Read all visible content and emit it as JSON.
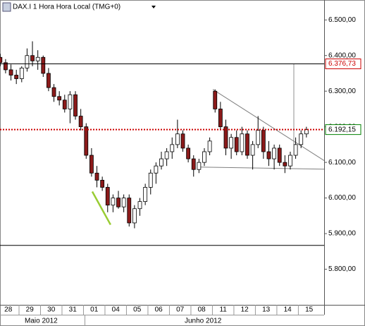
{
  "chart_data": {
    "type": "candlestick",
    "title": "DAX.I 1 Hora Hora Local (TMG+0)",
    "x": [
      0.125,
      0.375,
      0.625,
      0.875,
      1.125,
      1.375,
      1.625,
      1.875,
      2.125,
      2.375,
      2.625,
      2.875,
      3.125,
      3.375,
      3.625,
      3.875,
      4.125,
      4.375,
      4.625,
      4.875,
      5.125,
      5.375,
      5.625,
      5.875,
      6.125,
      6.375,
      6.625,
      6.875,
      7.125,
      7.375,
      7.625,
      7.875,
      8.125,
      8.375,
      8.625,
      8.875,
      9.125,
      9.375,
      9.625,
      9.875,
      10.125,
      10.375,
      10.625,
      10.875,
      11.125,
      11.375,
      11.625,
      11.875,
      12.125,
      12.375,
      12.625,
      12.875,
      13.125,
      13.375,
      13.625,
      13.875,
      14.125,
      14.375
    ],
    "open": [
      6395,
      6380,
      6360,
      6345,
      6335,
      6365,
      6400,
      6385,
      6395,
      6350,
      6310,
      6285,
      6275,
      6250,
      6290,
      6230,
      6200,
      6120,
      6070,
      6050,
      6030,
      5980,
      6000,
      5975,
      6000,
      5930,
      5970,
      5990,
      6030,
      6070,
      6090,
      6110,
      6130,
      6150,
      6180,
      6140,
      6110,
      6080,
      6100,
      6130,
      6300,
      6250,
      6200,
      6140,
      6170,
      6130,
      6180,
      6120,
      6150,
      6190,
      6130,
      6110,
      6140,
      6100,
      6090,
      6120,
      6150,
      6180
    ],
    "high": [
      6405,
      6390,
      6375,
      6360,
      6370,
      6420,
      6440,
      6415,
      6400,
      6365,
      6320,
      6300,
      6290,
      6300,
      6300,
      6250,
      6210,
      6140,
      6090,
      6060,
      6040,
      6010,
      6020,
      6010,
      6010,
      5980,
      6000,
      6040,
      6080,
      6100,
      6130,
      6140,
      6170,
      6220,
      6190,
      6150,
      6120,
      6110,
      6140,
      6170,
      6305,
      6270,
      6220,
      6180,
      6190,
      6200,
      6190,
      6160,
      6230,
      6200,
      6160,
      6150,
      6150,
      6120,
      6130,
      6170,
      6190,
      6200
    ],
    "low": [
      6370,
      6350,
      6330,
      6320,
      6325,
      6355,
      6370,
      6360,
      6340,
      6300,
      6270,
      6260,
      6240,
      6210,
      6220,
      6190,
      6110,
      6060,
      6030,
      6020,
      5960,
      5960,
      5970,
      5960,
      5920,
      5915,
      5950,
      5980,
      6010,
      6040,
      6080,
      6090,
      6110,
      6140,
      6130,
      6100,
      6060,
      6070,
      6090,
      6120,
      6240,
      6190,
      6120,
      6110,
      6120,
      6120,
      6110,
      6080,
      6140,
      6110,
      6090,
      6080,
      6090,
      6070,
      6080,
      6110,
      6140,
      6170
    ],
    "close": [
      6380,
      6360,
      6345,
      6335,
      6365,
      6400,
      6385,
      6395,
      6350,
      6310,
      6285,
      6275,
      6250,
      6290,
      6230,
      6200,
      6120,
      6070,
      6050,
      6030,
      5980,
      6000,
      5975,
      6000,
      5930,
      5970,
      5990,
      6030,
      6070,
      6090,
      6110,
      6130,
      6150,
      6180,
      6140,
      6110,
      6080,
      6100,
      6130,
      6160,
      6250,
      6200,
      6140,
      6170,
      6130,
      6180,
      6120,
      6150,
      6190,
      6130,
      6110,
      6140,
      6100,
      6090,
      6120,
      6150,
      6180,
      6192.15
    ],
    "up_color": "#ffffff",
    "down_color": "#8b1a1a",
    "xlim": [
      0.115,
      15.2
    ],
    "ylim": [
      5700,
      6556
    ],
    "xticks": [
      {
        "value": 0.5,
        "label": "28"
      },
      {
        "value": 1.5,
        "label": "29"
      },
      {
        "value": 2.5,
        "label": "30"
      },
      {
        "value": 3.5,
        "label": "31"
      },
      {
        "value": 4.5,
        "label": "01"
      },
      {
        "value": 5.5,
        "label": "04"
      },
      {
        "value": 6.5,
        "label": "05"
      },
      {
        "value": 7.5,
        "label": "06"
      },
      {
        "value": 8.5,
        "label": "07"
      },
      {
        "value": 9.5,
        "label": "08"
      },
      {
        "value": 10.5,
        "label": "11"
      },
      {
        "value": 11.5,
        "label": "12"
      },
      {
        "value": 12.5,
        "label": "13"
      },
      {
        "value": 13.5,
        "label": "14"
      },
      {
        "value": 14.5,
        "label": "15"
      }
    ],
    "yticks": [
      {
        "value": 5800,
        "label": "5.800,00"
      },
      {
        "value": 5900,
        "label": "5.900,00"
      },
      {
        "value": 6000,
        "label": "6.000,00"
      },
      {
        "value": 6100,
        "label": "6.100,00"
      },
      {
        "value": 6200,
        "label": "6.200,00"
      },
      {
        "value": 6300,
        "label": "6.300,00"
      },
      {
        "value": 6400,
        "label": "6.400,00"
      },
      {
        "value": 6500,
        "label": "6.500,00"
      }
    ],
    "months": [
      "Maio 2012",
      "Junho 2012"
    ],
    "levels": [
      {
        "value": 6376.73,
        "label": "6.376,73",
        "color": "#cc0000",
        "line_color": "#000000",
        "style": "solid"
      },
      {
        "value": 6192.15,
        "label": "6.192,15",
        "color": "#008000",
        "line_color": "#cc0000",
        "style": "dotted"
      }
    ],
    "hlines": [
      5867
    ],
    "trendlines": [
      {
        "x": [
          10.02,
          15.2
        ],
        "values": [
          6305,
          6105
        ],
        "color": "#808080"
      },
      {
        "x": [
          9.36,
          15.2
        ],
        "values": [
          6087,
          6081
        ],
        "color": "#808080"
      },
      {
        "x": [
          4.41,
          5.26
        ],
        "values": [
          6018,
          5925
        ],
        "color": "#99cc33"
      },
      {
        "x": [
          13.79,
          13.79
        ],
        "values": [
          6376.73,
          6150
        ],
        "color": "#909090"
      }
    ]
  }
}
